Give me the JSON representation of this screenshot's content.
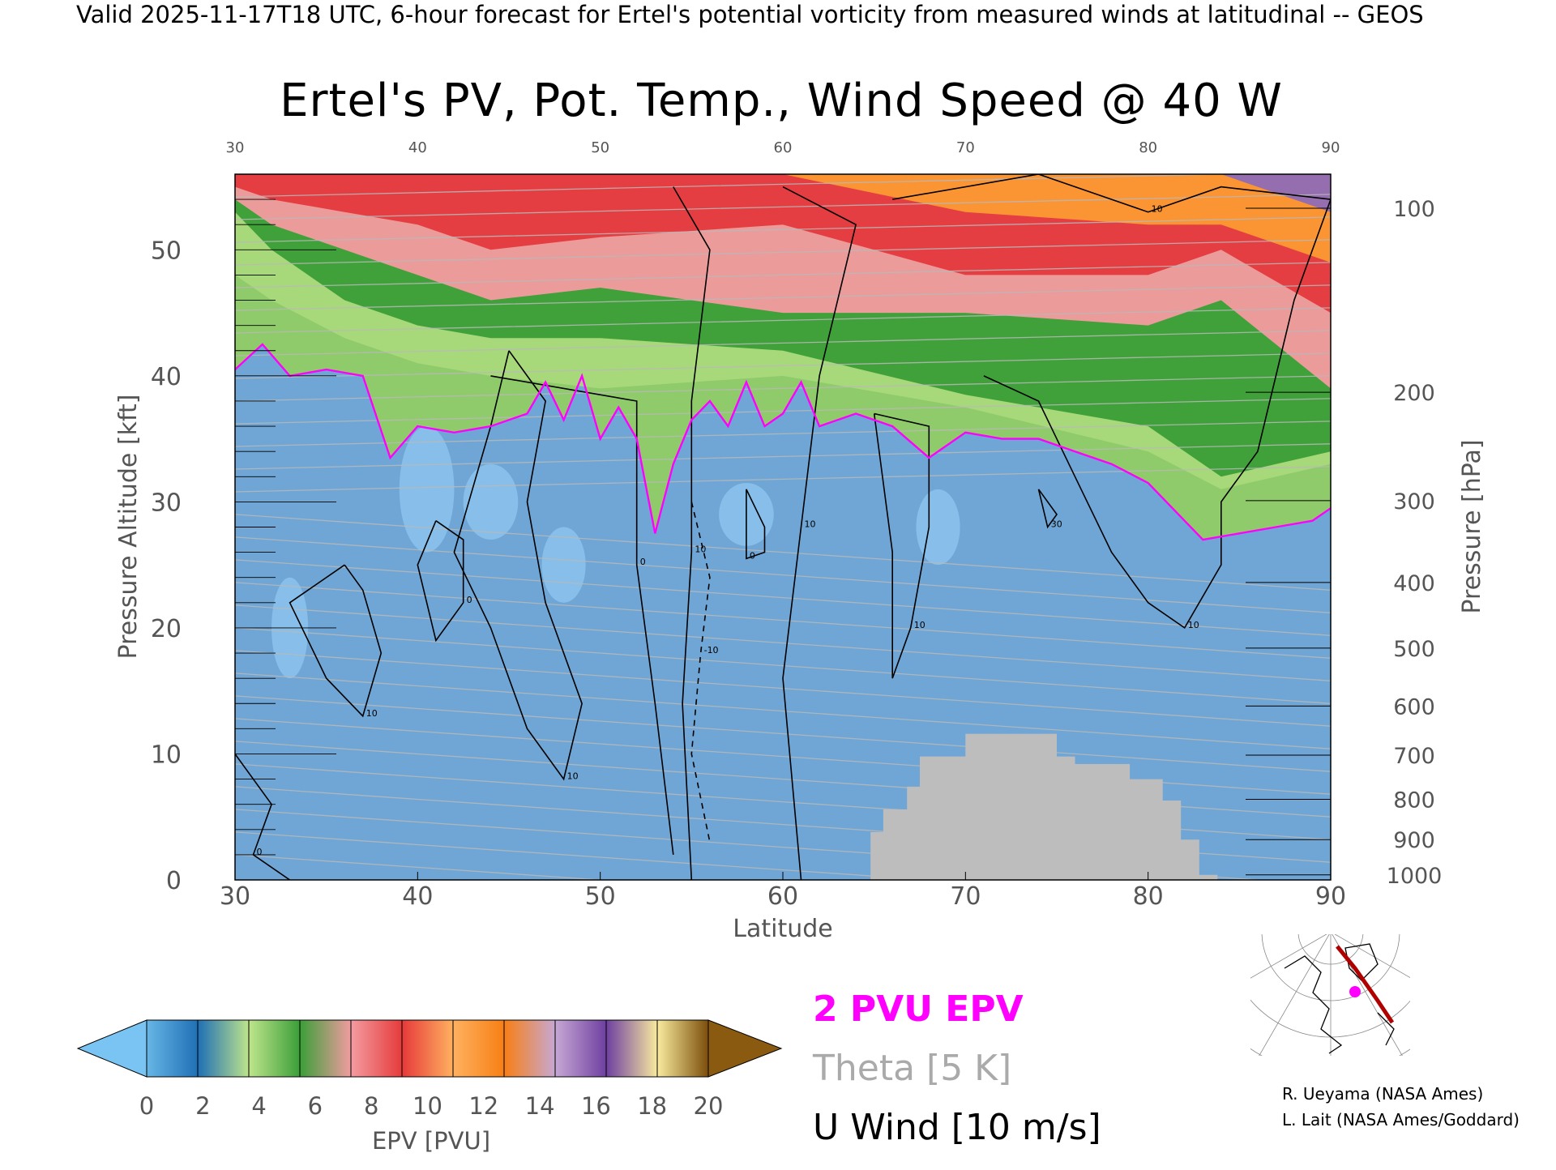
{
  "header": {
    "valid_line": "Valid 2025-11-17T18 UTC, 6-hour forecast for Ertel's potential vorticity from measured winds at latitudinal -- GEOS"
  },
  "chart_data": {
    "type": "heatmap",
    "title": "Ertel's PV, Pot. Temp., Wind Speed @ 40 W",
    "xlabel": "Latitude",
    "ylabel_left": "Pressure Altitude [kft]",
    "ylabel_right": "Pressure [hPa]",
    "xlim": [
      30,
      90
    ],
    "ylim": [
      0,
      56
    ],
    "x_ticks": [
      "30",
      "40",
      "50",
      "60",
      "70",
      "80",
      "90"
    ],
    "x_ticks_top": [
      "30",
      "40",
      "50",
      "60",
      "70",
      "80",
      "90"
    ],
    "y_ticks_left": [
      "0",
      "10",
      "20",
      "30",
      "40",
      "50"
    ],
    "y_ticks_right": [
      {
        "label": "1000",
        "kft": 0.4
      },
      {
        "label": "900",
        "kft": 3.2
      },
      {
        "label": "800",
        "kft": 6.4
      },
      {
        "label": "700",
        "kft": 9.9
      },
      {
        "label": "600",
        "kft": 13.8
      },
      {
        "label": "500",
        "kft": 18.4
      },
      {
        "label": "400",
        "kft": 23.6
      },
      {
        "label": "300",
        "kft": 30.1
      },
      {
        "label": "200",
        "kft": 38.7
      },
      {
        "label": "100",
        "kft": 53.3
      }
    ],
    "tropopause_2pvu_kft": [
      [
        30,
        40.5
      ],
      [
        31.5,
        42.5
      ],
      [
        33,
        40
      ],
      [
        35,
        40.5
      ],
      [
        37,
        40
      ],
      [
        38.5,
        33.5
      ],
      [
        40,
        36
      ],
      [
        42,
        35.5
      ],
      [
        44,
        36
      ],
      [
        46,
        37
      ],
      [
        47,
        39.5
      ],
      [
        48,
        36.5
      ],
      [
        49,
        40
      ],
      [
        50,
        35
      ],
      [
        51,
        37.5
      ],
      [
        52,
        35
      ],
      [
        53,
        27.5
      ],
      [
        54,
        33
      ],
      [
        55,
        36.5
      ],
      [
        56,
        38
      ],
      [
        57,
        36
      ],
      [
        58,
        39.5
      ],
      [
        59,
        36
      ],
      [
        60,
        37
      ],
      [
        61,
        39.5
      ],
      [
        62,
        36
      ],
      [
        64,
        37
      ],
      [
        66,
        36
      ],
      [
        68,
        33.5
      ],
      [
        70,
        35.5
      ],
      [
        72,
        35
      ],
      [
        74,
        35
      ],
      [
        76,
        34
      ],
      [
        78,
        33
      ],
      [
        80,
        31.5
      ],
      [
        82,
        28.5
      ],
      [
        83,
        27
      ],
      [
        85,
        27.5
      ],
      [
        87,
        28
      ],
      [
        89,
        28.5
      ],
      [
        90,
        29.5
      ]
    ],
    "pv_band_tops_kft": {
      "light_green": [
        [
          30,
          48
        ],
        [
          32,
          46
        ],
        [
          36,
          43
        ],
        [
          40,
          41
        ],
        [
          44,
          40
        ],
        [
          50,
          39
        ],
        [
          60,
          40
        ],
        [
          70,
          37.5
        ],
        [
          80,
          34
        ],
        [
          84,
          31
        ],
        [
          90,
          33
        ]
      ],
      "green": [
        [
          30,
          53
        ],
        [
          32,
          50
        ],
        [
          36,
          46
        ],
        [
          40,
          44
        ],
        [
          44,
          43
        ],
        [
          50,
          43
        ],
        [
          60,
          42
        ],
        [
          70,
          38.5
        ],
        [
          80,
          36
        ],
        [
          84,
          32
        ],
        [
          90,
          34
        ]
      ],
      "pink": [
        [
          30,
          54
        ],
        [
          32,
          52
        ],
        [
          36,
          50
        ],
        [
          40,
          48
        ],
        [
          44,
          46
        ],
        [
          50,
          47
        ],
        [
          60,
          45
        ],
        [
          70,
          45
        ],
        [
          80,
          44
        ],
        [
          84,
          46
        ],
        [
          90,
          39
        ]
      ],
      "red": [
        [
          30,
          55
        ],
        [
          32,
          54
        ],
        [
          36,
          53
        ],
        [
          40,
          52
        ],
        [
          44,
          50
        ],
        [
          50,
          51
        ],
        [
          60,
          52
        ],
        [
          70,
          48
        ],
        [
          80,
          48
        ],
        [
          84,
          50
        ],
        [
          90,
          45
        ]
      ],
      "orange": [
        [
          30,
          56
        ],
        [
          40,
          56
        ],
        [
          50,
          56
        ],
        [
          60,
          56
        ],
        [
          70,
          53
        ],
        [
          80,
          52
        ],
        [
          84,
          52
        ],
        [
          90,
          49
        ]
      ],
      "purple": [
        [
          30,
          56
        ],
        [
          64,
          56
        ],
        [
          68,
          56
        ],
        [
          72,
          56
        ],
        [
          80,
          56
        ],
        [
          84,
          56
        ],
        [
          90,
          53
        ]
      ]
    },
    "u_wind_contours": [
      {
        "label": "0",
        "points": [
          [
            41,
            28.5
          ],
          [
            40,
            25
          ],
          [
            41,
            19
          ],
          [
            42.5,
            22
          ],
          [
            42.5,
            27
          ],
          [
            41,
            28.5
          ]
        ]
      },
      {
        "label": "10",
        "points": [
          [
            36,
            25
          ],
          [
            33,
            22
          ],
          [
            35,
            16
          ],
          [
            37,
            13
          ],
          [
            38,
            18
          ],
          [
            37,
            23
          ],
          [
            36,
            25
          ]
        ]
      },
      {
        "label": "10",
        "points": [
          [
            45,
            42
          ],
          [
            44,
            36
          ],
          [
            42,
            26
          ],
          [
            44,
            20
          ],
          [
            46,
            12
          ],
          [
            48,
            8
          ],
          [
            49,
            14
          ],
          [
            47,
            22
          ],
          [
            46,
            30
          ],
          [
            47,
            38
          ],
          [
            45,
            42
          ]
        ]
      },
      {
        "label": "0",
        "points": [
          [
            44,
            40
          ],
          [
            52,
            38
          ],
          [
            52,
            25
          ],
          [
            53,
            14
          ],
          [
            54,
            2
          ]
        ]
      },
      {
        "label": "10",
        "points": [
          [
            54,
            55
          ],
          [
            56,
            50
          ],
          [
            55,
            38
          ],
          [
            55,
            26
          ],
          [
            54.5,
            14
          ],
          [
            55,
            0
          ]
        ]
      },
      {
        "label": "-10",
        "points": [
          [
            55,
            30
          ],
          [
            56,
            24
          ],
          [
            55.5,
            18
          ],
          [
            55,
            10
          ],
          [
            56,
            3
          ]
        ]
      },
      {
        "label": "10",
        "points": [
          [
            60,
            55
          ],
          [
            64,
            52
          ],
          [
            62,
            40
          ],
          [
            61,
            28
          ],
          [
            60,
            16
          ],
          [
            61,
            0
          ]
        ]
      },
      {
        "label": "0",
        "points": [
          [
            58,
            31
          ],
          [
            59,
            28
          ],
          [
            59,
            26
          ],
          [
            58,
            25.5
          ],
          [
            58,
            28
          ],
          [
            58,
            31
          ]
        ]
      },
      {
        "label": "10",
        "points": [
          [
            65,
            37
          ],
          [
            68,
            36
          ],
          [
            68,
            28
          ],
          [
            67,
            20
          ],
          [
            66,
            16
          ],
          [
            66,
            26
          ],
          [
            65,
            37
          ]
        ]
      },
      {
        "label": "30",
        "points": [
          [
            74,
            31
          ],
          [
            75,
            29
          ],
          [
            74.5,
            28
          ],
          [
            74,
            31
          ]
        ]
      },
      {
        "label": "10",
        "points": [
          [
            71,
            40
          ],
          [
            74,
            38
          ],
          [
            76,
            32
          ],
          [
            78,
            26
          ],
          [
            80,
            22
          ],
          [
            82,
            20
          ],
          [
            84,
            25
          ],
          [
            84,
            30
          ],
          [
            86,
            34
          ],
          [
            88,
            46
          ],
          [
            90,
            54
          ]
        ]
      },
      {
        "label": "10",
        "points": [
          [
            66,
            54
          ],
          [
            74,
            56
          ],
          [
            80,
            53
          ],
          [
            84,
            55
          ],
          [
            90,
            54
          ]
        ]
      },
      {
        "label": "0",
        "points": [
          [
            30,
            10
          ],
          [
            32,
            6
          ],
          [
            31,
            2
          ],
          [
            33,
            0
          ]
        ]
      }
    ],
    "terrain_mask": [
      [
        64.8,
        0
      ],
      [
        64.8,
        3.8
      ],
      [
        65.5,
        3.8
      ],
      [
        65.5,
        5.6
      ],
      [
        66.8,
        5.6
      ],
      [
        66.8,
        7.4
      ],
      [
        67.5,
        7.4
      ],
      [
        67.5,
        9.8
      ],
      [
        70,
        9.8
      ],
      [
        70,
        11.6
      ],
      [
        75,
        11.6
      ],
      [
        75,
        9.8
      ],
      [
        76,
        9.8
      ],
      [
        76,
        9.2
      ],
      [
        79,
        9.2
      ],
      [
        79,
        8.0
      ],
      [
        80.8,
        8.0
      ],
      [
        80.8,
        6.3
      ],
      [
        81.8,
        6.3
      ],
      [
        81.8,
        3.2
      ],
      [
        82.8,
        3.2
      ],
      [
        82.8,
        0.4
      ],
      [
        83.8,
        0.4
      ],
      [
        83.8,
        0
      ]
    ],
    "colorbar": {
      "label": "EPV [PVU]",
      "ticks": [
        "0",
        "2",
        "4",
        "6",
        "8",
        "10",
        "12",
        "14",
        "16",
        "18",
        "20"
      ],
      "colors": [
        "#67b6e6",
        "#1f6fb5",
        "#bfe58c",
        "#3a9e38",
        "#f39ca1",
        "#e63a3a",
        "#ffb160",
        "#f77f14",
        "#c7a8d4",
        "#6e3fa0",
        "#f9eb9f",
        "#7a4d09"
      ],
      "under_color": "#79c4f2",
      "over_color": "#8a5a10"
    }
  },
  "legend": {
    "pvu_label": "2 PVU EPV",
    "theta_label": "Theta [5 K]",
    "wind_label": "U Wind [10 m/s]",
    "pvu_color": "#ff00ff",
    "theta_color": "#aaaaaa",
    "wind_color": "#000000"
  },
  "credits": {
    "line1": "R. Ueyama (NASA Ames)",
    "line2": "L. Lait (NASA Ames/Goddard)"
  },
  "map": {
    "section_color": "#b00000",
    "marker_color": "#ff00ff"
  }
}
